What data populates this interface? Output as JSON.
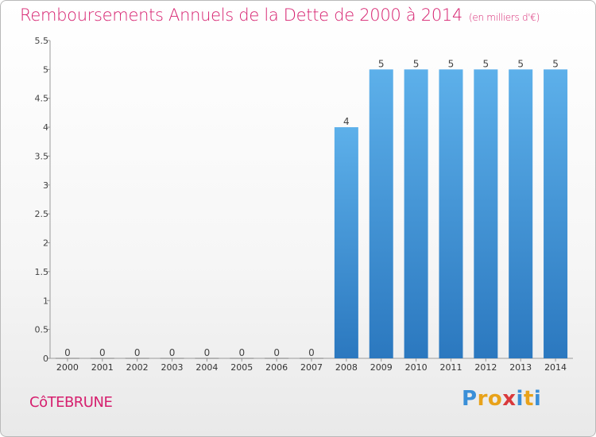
{
  "header": {
    "title": "Remboursements Annuels de la Dette de 2000 à 2014",
    "unit": "(en milliers d'€)"
  },
  "commune": "CôTEBRUNE",
  "logo": {
    "text": "Proxiti",
    "letter_colors": [
      "#3a8fd8",
      "#e8a21a",
      "#e8a21a",
      "#d9393c",
      "#3a8fd8",
      "#e8a21a",
      "#3a8fd8"
    ]
  },
  "colors": {
    "title": "#d61f6e",
    "bar_top": "#5db0ea",
    "bar_bottom": "#2b78bf"
  },
  "chart_data": {
    "type": "bar",
    "title": "Remboursements Annuels de la Dette de 2000 à 2014",
    "subtitle": "(en milliers d'€)",
    "categories": [
      "2000",
      "2001",
      "2002",
      "2003",
      "2004",
      "2005",
      "2006",
      "2007",
      "2008",
      "2009",
      "2010",
      "2011",
      "2012",
      "2013",
      "2014"
    ],
    "values": [
      0,
      0,
      0,
      0,
      0,
      0,
      0,
      0,
      4,
      5,
      5,
      5,
      5,
      5,
      5
    ],
    "value_labels": [
      "0",
      "0",
      "0",
      "0",
      "0",
      "0",
      "0",
      "0",
      "4",
      "5",
      "5",
      "5",
      "5",
      "5",
      "5"
    ],
    "yticks": [
      "0",
      "0.5",
      "1",
      "1.5",
      "2",
      "2.5",
      "3",
      "3.5",
      "4",
      "4.5",
      "5",
      "5.5"
    ],
    "ylim": [
      0,
      5.5
    ],
    "xlabel": "",
    "ylabel": "",
    "grid": false,
    "legend": "none"
  }
}
